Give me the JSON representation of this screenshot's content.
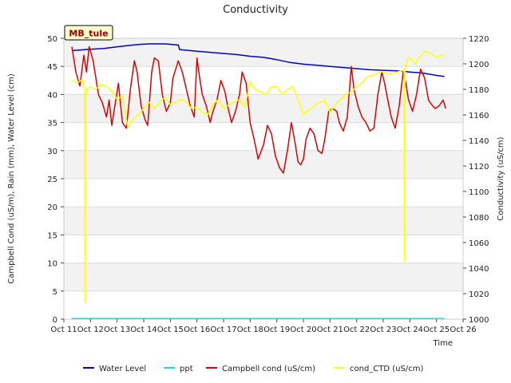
{
  "chart_data": {
    "type": "line",
    "title": "Conductivity",
    "xlabel": "Time",
    "ylabel_left": "Campbell Cond (uS/m), Rain (mm), Water Level (cm)",
    "ylabel_right": "Conductivity (uS/cm)",
    "station_tag": "MB_tule",
    "xlim": [
      11,
      26
    ],
    "ylim_left": [
      0,
      50
    ],
    "ylim_right": [
      1000,
      1220
    ],
    "x_ticks": [
      {
        "v": 11,
        "label": "Oct 11"
      },
      {
        "v": 12,
        "label": "Oct 12"
      },
      {
        "v": 13,
        "label": "Oct 13"
      },
      {
        "v": 14,
        "label": "Oct 14"
      },
      {
        "v": 15,
        "label": "Oct 15"
      },
      {
        "v": 16,
        "label": "Oct 16"
      },
      {
        "v": 17,
        "label": "Oct 17"
      },
      {
        "v": 18,
        "label": "Oct 18"
      },
      {
        "v": 19,
        "label": "Oct 19"
      },
      {
        "v": 20,
        "label": "Oct 20"
      },
      {
        "v": 21,
        "label": "Oct 21"
      },
      {
        "v": 22,
        "label": "Oct 22"
      },
      {
        "v": 23,
        "label": "Oct 23"
      },
      {
        "v": 24,
        "label": "Oct 24"
      },
      {
        "v": 25,
        "label": "Oct 25"
      },
      {
        "v": 26,
        "label": "Oct 26"
      }
    ],
    "y_ticks_left": [
      "0",
      "5",
      "10",
      "15",
      "20",
      "25",
      "30",
      "35",
      "40",
      "45",
      "50"
    ],
    "y_ticks_right": [
      "1000",
      "1020",
      "1040",
      "1060",
      "1080",
      "1100",
      "1120",
      "1140",
      "1160",
      "1180",
      "1200",
      "1220"
    ],
    "grid": true,
    "legend_position": "bottom",
    "series": [
      {
        "name": "Water Level",
        "color": "#0000cc",
        "axis": "left",
        "x": [
          11.3,
          11.8,
          12.5,
          13.2,
          13.8,
          14.2,
          14.8,
          15.3,
          15.35,
          16.0,
          16.5,
          17.0,
          17.5,
          18.0,
          18.5,
          19.0,
          19.5,
          20.0,
          20.5,
          21.0,
          21.5,
          22.0,
          22.5,
          23.0,
          23.5,
          24.0,
          24.5,
          25.0,
          25.3
        ],
        "y": [
          47.8,
          48.0,
          48.2,
          48.6,
          48.9,
          49.0,
          49.0,
          48.8,
          48.0,
          47.7,
          47.5,
          47.3,
          47.1,
          46.8,
          46.6,
          46.2,
          45.7,
          45.4,
          45.2,
          45.0,
          44.8,
          44.6,
          44.4,
          44.3,
          44.2,
          44.0,
          43.8,
          43.4,
          43.2
        ]
      },
      {
        "name": "ppt",
        "color": "#00e5e5",
        "axis": "left",
        "x": [
          11.3,
          25.3
        ],
        "y": [
          0.1,
          0.1
        ]
      },
      {
        "name": "Campbell cond (uS/cm)",
        "color": "#dd0000",
        "axis": "left",
        "x": [
          11.3,
          11.45,
          11.6,
          11.75,
          11.85,
          11.95,
          12.1,
          12.2,
          12.3,
          12.45,
          12.6,
          12.7,
          12.8,
          12.95,
          13.05,
          13.2,
          13.35,
          13.5,
          13.65,
          13.75,
          13.9,
          14.05,
          14.15,
          14.3,
          14.4,
          14.55,
          14.7,
          14.85,
          15.0,
          15.1,
          15.3,
          15.45,
          15.6,
          15.75,
          15.9,
          16.0,
          16.1,
          16.2,
          16.35,
          16.5,
          16.6,
          16.75,
          16.9,
          17.05,
          17.15,
          17.3,
          17.45,
          17.6,
          17.7,
          17.85,
          18.0,
          18.15,
          18.3,
          18.5,
          18.65,
          18.8,
          18.95,
          19.1,
          19.25,
          19.4,
          19.55,
          19.7,
          19.8,
          19.9,
          20.0,
          20.1,
          20.25,
          20.4,
          20.55,
          20.7,
          20.8,
          20.95,
          21.1,
          21.25,
          21.35,
          21.5,
          21.65,
          21.8,
          21.9,
          22.05,
          22.2,
          22.35,
          22.5,
          22.65,
          22.8,
          22.95,
          23.05,
          23.15,
          23.3,
          23.45,
          23.6,
          23.75,
          23.85,
          23.95,
          24.1,
          24.25,
          24.4,
          24.55,
          24.7,
          24.85,
          24.95,
          25.1,
          25.25,
          25.35
        ],
        "y": [
          48.5,
          44.0,
          41.5,
          47.0,
          44.0,
          48.5,
          46.0,
          43.0,
          40.0,
          38.5,
          36.0,
          39.0,
          34.5,
          39.0,
          42.0,
          35.0,
          34.0,
          41.0,
          46.0,
          44.0,
          38.0,
          35.5,
          34.5,
          44.0,
          46.5,
          46.0,
          40.0,
          37.0,
          38.5,
          43.0,
          46.0,
          44.0,
          41.0,
          38.0,
          36.0,
          46.5,
          43.0,
          40.0,
          38.0,
          35.0,
          37.0,
          39.0,
          42.5,
          40.5,
          38.0,
          35.0,
          37.0,
          40.0,
          44.0,
          42.0,
          35.0,
          32.0,
          28.5,
          31.0,
          34.5,
          33.0,
          29.0,
          27.0,
          26.0,
          30.0,
          35.0,
          31.0,
          28.0,
          27.5,
          28.5,
          32.0,
          34.0,
          33.0,
          30.0,
          29.5,
          32.0,
          37.0,
          37.5,
          37.0,
          35.0,
          33.5,
          36.0,
          45.0,
          41.0,
          38.0,
          36.0,
          35.0,
          33.5,
          34.0,
          40.0,
          44.0,
          42.0,
          39.5,
          36.0,
          34.0,
          38.0,
          44.0,
          42.0,
          39.0,
          37.0,
          40.0,
          44.5,
          43.0,
          39.0,
          38.0,
          37.5,
          38.0,
          39.0,
          37.5
        ]
      },
      {
        "name": "cond_CTD (uS/cm)",
        "color": "#ffff00",
        "axis": "right",
        "x": [
          11.3,
          11.5,
          11.7,
          11.78,
          11.8,
          11.82,
          11.86,
          12.0,
          12.2,
          12.4,
          12.6,
          12.8,
          13.0,
          13.2,
          13.4,
          13.6,
          13.8,
          14.0,
          14.2,
          14.4,
          14.6,
          14.8,
          15.0,
          15.2,
          15.4,
          15.6,
          15.8,
          16.0,
          16.2,
          16.4,
          16.6,
          16.8,
          17.0,
          17.2,
          17.4,
          17.6,
          17.8,
          18.0,
          18.2,
          18.4,
          18.6,
          18.8,
          19.0,
          19.2,
          19.4,
          19.6,
          19.8,
          20.0,
          20.2,
          20.4,
          20.6,
          20.8,
          21.0,
          21.2,
          21.4,
          21.6,
          21.8,
          22.0,
          22.2,
          22.4,
          22.6,
          22.8,
          23.0,
          23.2,
          23.4,
          23.6,
          23.78,
          23.8,
          23.82,
          23.9,
          24.0,
          24.2,
          24.4,
          24.6,
          24.8,
          25.0,
          25.2,
          25.3
        ],
        "y": [
          1187,
          1185,
          1188,
          1180,
          1013,
          1175,
          1180,
          1182,
          1180,
          1184,
          1182,
          1179,
          1172,
          1175,
          1150,
          1157,
          1160,
          1165,
          1170,
          1165,
          1170,
          1174,
          1168,
          1170,
          1172,
          1170,
          1165,
          1166,
          1162,
          1160,
          1168,
          1172,
          1165,
          1168,
          1170,
          1172,
          1166,
          1186,
          1180,
          1178,
          1176,
          1182,
          1182,
          1176,
          1180,
          1182,
          1172,
          1160,
          1164,
          1167,
          1170,
          1171,
          1162,
          1168,
          1172,
          1176,
          1178,
          1182,
          1185,
          1190,
          1191,
          1193,
          1194,
          1192,
          1193,
          1194,
          1195,
          1045,
          1196,
          1203,
          1205,
          1200,
          1206,
          1210,
          1208,
          1205,
          1207,
          1206
        ]
      }
    ]
  }
}
